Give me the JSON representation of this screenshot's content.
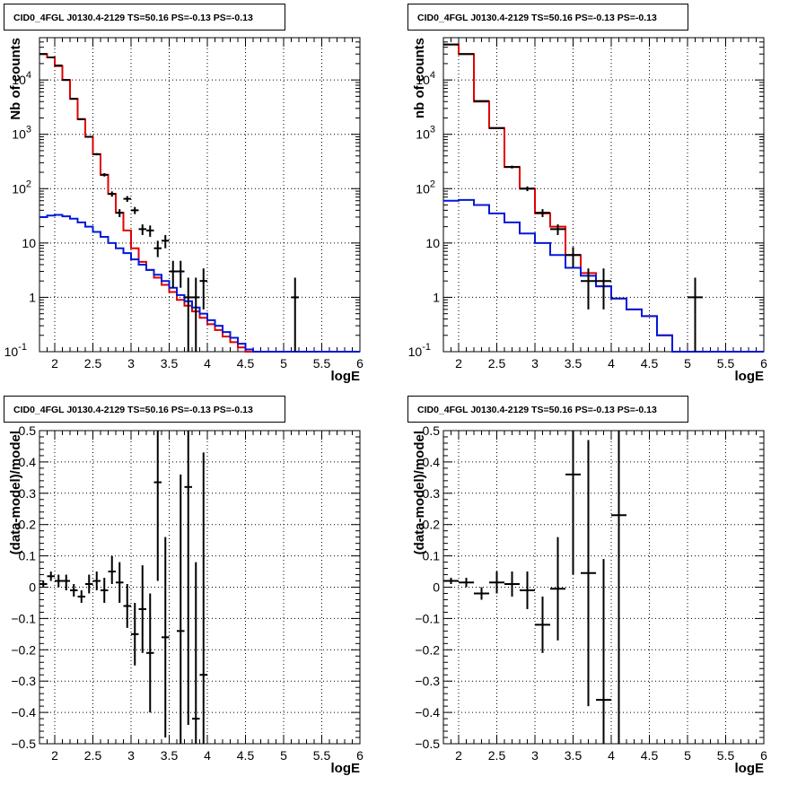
{
  "colors": {
    "data": "#000000",
    "total_model": "#e00000",
    "component_model": "#0018d8",
    "grid": "#000000"
  },
  "chart_data": [
    {
      "type": "line",
      "title": "CID0_4FGL J0130.4-2129 TS=50.16 PS=-0.13 PS=-0.13",
      "xlabel": "logE",
      "ylabel": "Nb of counts",
      "xlim": [
        1.8,
        6.0
      ],
      "ylim": [
        0.1,
        60000
      ],
      "yscale": "log",
      "grid": true,
      "x_ticks": [
        "2",
        "2.5",
        "3",
        "3.5",
        "4",
        "4.5",
        "5",
        "5.5",
        "6"
      ],
      "y_ticks": [
        "10^-1",
        "1",
        "10",
        "10^2",
        "10^3",
        "10^4"
      ],
      "series": [
        {
          "style": "step",
          "color_key": "total_model",
          "edges": [
            1.8,
            1.9,
            2.0,
            2.1,
            2.2,
            2.3,
            2.4,
            2.5,
            2.6,
            2.7,
            2.8,
            2.9,
            3.0,
            3.1,
            3.2,
            3.3,
            3.4,
            3.5,
            3.6,
            3.7,
            3.8,
            3.9,
            4.0,
            4.1,
            4.2,
            4.3,
            4.4,
            4.5,
            4.6,
            4.7,
            4.8,
            4.9,
            5.0,
            5.1,
            5.2,
            5.3,
            5.4,
            5.5,
            5.6,
            5.7,
            5.8,
            5.9,
            6.0
          ],
          "values": [
            30000,
            26000,
            18000,
            10000,
            4500,
            1900,
            900,
            430,
            180,
            80,
            36,
            17,
            8,
            4.5,
            3.2,
            2.3,
            1.7,
            1.25,
            0.9,
            0.7,
            0.55,
            0.42,
            0.32,
            0.25,
            0.19,
            0.15,
            0.12,
            0.1,
            0.1,
            0.1,
            0.1,
            0.1,
            0.1,
            0.1,
            0.1,
            0.1,
            0.1,
            0.1,
            0.1,
            0.1,
            0.1,
            0.1
          ]
        },
        {
          "style": "step",
          "color_key": "component_model",
          "edges": [
            1.8,
            1.9,
            2.0,
            2.1,
            2.2,
            2.3,
            2.4,
            2.5,
            2.6,
            2.7,
            2.8,
            2.9,
            3.0,
            3.1,
            3.2,
            3.3,
            3.4,
            3.5,
            3.6,
            3.7,
            3.8,
            3.9,
            4.0,
            4.1,
            4.2,
            4.3,
            4.4,
            4.5,
            4.6,
            4.7,
            4.8,
            4.9,
            5.0,
            5.1,
            5.2,
            5.3,
            5.4,
            5.5,
            5.6,
            5.7,
            5.8,
            5.9,
            6.0
          ],
          "values": [
            30,
            32,
            33,
            31,
            28,
            24,
            20,
            16,
            13,
            10,
            8,
            6.5,
            5,
            4,
            3.2,
            2.6,
            2,
            1.5,
            1.1,
            0.85,
            0.65,
            0.5,
            0.38,
            0.3,
            0.23,
            0.18,
            0.14,
            0.11,
            0.1,
            0.1,
            0.1,
            0.1,
            0.1,
            0.1,
            0.1,
            0.1,
            0.1,
            0.1,
            0.1,
            0.1,
            0.1,
            0.1
          ]
        },
        {
          "style": "errorbar",
          "color_key": "data",
          "xerr": 0.05,
          "points": [
            {
              "x": 1.85,
              "y": 30000,
              "lo": 29800,
              "hi": 30200
            },
            {
              "x": 1.95,
              "y": 26000,
              "lo": 25800,
              "hi": 26200
            },
            {
              "x": 2.05,
              "y": 18500,
              "lo": 18300,
              "hi": 18700
            },
            {
              "x": 2.15,
              "y": 10000,
              "lo": 9900,
              "hi": 10100
            },
            {
              "x": 2.25,
              "y": 4500,
              "lo": 4430,
              "hi": 4570
            },
            {
              "x": 2.35,
              "y": 1900,
              "lo": 1860,
              "hi": 1940
            },
            {
              "x": 2.45,
              "y": 900,
              "lo": 870,
              "hi": 930
            },
            {
              "x": 2.55,
              "y": 430,
              "lo": 410,
              "hi": 450
            },
            {
              "x": 2.65,
              "y": 180,
              "lo": 167,
              "hi": 193
            },
            {
              "x": 2.75,
              "y": 80,
              "lo": 71,
              "hi": 89
            },
            {
              "x": 2.85,
              "y": 36,
              "lo": 30,
              "hi": 42
            },
            {
              "x": 2.95,
              "y": 65,
              "lo": 57,
              "hi": 73
            },
            {
              "x": 3.05,
              "y": 40,
              "lo": 34,
              "hi": 46
            },
            {
              "x": 3.15,
              "y": 18,
              "lo": 14,
              "hi": 22
            },
            {
              "x": 3.25,
              "y": 17,
              "lo": 13,
              "hi": 21
            },
            {
              "x": 3.35,
              "y": 8,
              "lo": 5.5,
              "hi": 11
            },
            {
              "x": 3.45,
              "y": 11,
              "lo": 8,
              "hi": 14
            },
            {
              "x": 3.55,
              "y": 3,
              "lo": 1.5,
              "hi": 4.7
            },
            {
              "x": 3.65,
              "y": 3,
              "lo": 1.5,
              "hi": 4.7
            },
            {
              "x": 3.75,
              "y": 1,
              "lo": 0.1,
              "hi": 2.3
            },
            {
              "x": 3.85,
              "y": 1,
              "lo": 0.1,
              "hi": 2.3
            },
            {
              "x": 3.95,
              "y": 2,
              "lo": 0.6,
              "hi": 3.4
            },
            {
              "x": 5.15,
              "y": 1,
              "lo": 0.1,
              "hi": 2.3
            }
          ]
        }
      ]
    },
    {
      "type": "line",
      "title": "CID0_4FGL J0130.4-2129 TS=50.16 PS=-0.13 PS=-0.13",
      "xlabel": "logE",
      "ylabel": "nb of counts",
      "xlim": [
        1.8,
        6.0
      ],
      "ylim": [
        0.1,
        60000
      ],
      "yscale": "log",
      "grid": true,
      "x_ticks": [
        "2",
        "2.5",
        "3",
        "3.5",
        "4",
        "4.5",
        "5",
        "5.5",
        "6"
      ],
      "y_ticks": [
        "10^-1",
        "1",
        "10",
        "10^2",
        "10^3",
        "10^4"
      ],
      "series": [
        {
          "style": "step",
          "color_key": "total_model",
          "edges": [
            1.8,
            2.0,
            2.2,
            2.4,
            2.6,
            2.8,
            3.0,
            3.2,
            3.4,
            3.6,
            3.8,
            4.0,
            4.2,
            4.4,
            4.6,
            4.8,
            5.0,
            5.2,
            5.4,
            5.6,
            5.8,
            6.0
          ],
          "values": [
            45000,
            30000,
            4000,
            1300,
            250,
            100,
            35,
            20,
            6,
            2.8,
            1.6,
            0.95,
            0.6,
            0.45,
            0.2,
            0.1,
            0.1,
            0.1,
            0.1,
            0.1,
            0.1
          ]
        },
        {
          "style": "step",
          "color_key": "component_model",
          "edges": [
            1.8,
            2.0,
            2.2,
            2.4,
            2.6,
            2.8,
            3.0,
            3.2,
            3.4,
            3.6,
            3.8,
            4.0,
            4.2,
            4.4,
            4.6,
            4.8,
            5.0,
            5.2,
            5.4,
            5.6,
            5.8,
            6.0
          ],
          "values": [
            60,
            62,
            50,
            35,
            24,
            15,
            10,
            6,
            3.5,
            2.5,
            1.6,
            0.95,
            0.6,
            0.45,
            0.2,
            0.1,
            0.1,
            0.1,
            0.1,
            0.1,
            0.1
          ]
        },
        {
          "style": "errorbar",
          "color_key": "data",
          "xerr": 0.1,
          "points": [
            {
              "x": 1.9,
              "y": 45000,
              "lo": 44800,
              "hi": 45200
            },
            {
              "x": 2.1,
              "y": 30000,
              "lo": 29800,
              "hi": 30200
            },
            {
              "x": 2.3,
              "y": 4100,
              "lo": 4030,
              "hi": 4170
            },
            {
              "x": 2.5,
              "y": 1300,
              "lo": 1260,
              "hi": 1340
            },
            {
              "x": 2.7,
              "y": 250,
              "lo": 235,
              "hi": 265
            },
            {
              "x": 2.9,
              "y": 100,
              "lo": 90,
              "hi": 110
            },
            {
              "x": 3.1,
              "y": 36,
              "lo": 30,
              "hi": 42
            },
            {
              "x": 3.3,
              "y": 18,
              "lo": 14,
              "hi": 22
            },
            {
              "x": 3.5,
              "y": 6,
              "lo": 3.6,
              "hi": 8.4
            },
            {
              "x": 3.7,
              "y": 2,
              "lo": 0.6,
              "hi": 3.4
            },
            {
              "x": 3.9,
              "y": 2,
              "lo": 0.6,
              "hi": 3.4
            },
            {
              "x": 5.1,
              "y": 1,
              "lo": 0.1,
              "hi": 2.3
            }
          ]
        }
      ]
    },
    {
      "type": "scatter",
      "title": "CID0_4FGL J0130.4-2129 TS=50.16 PS=-0.13 PS=-0.13",
      "xlabel": "logE",
      "ylabel": "(data-model)/model",
      "xlim": [
        1.8,
        6.0
      ],
      "ylim": [
        -0.5,
        0.5
      ],
      "yscale": "linear",
      "grid": true,
      "x_ticks": [
        "2",
        "2.5",
        "3",
        "3.5",
        "4",
        "4.5",
        "5",
        "5.5",
        "6"
      ],
      "y_ticks": [
        "−0.5",
        "−0.4",
        "−0.3",
        "−0.2",
        "−0.1",
        "0",
        "0.1",
        "0.2",
        "0.3",
        "0.4",
        "0.5"
      ],
      "series": [
        {
          "style": "errorbar",
          "color_key": "data",
          "xerr": 0.05,
          "points": [
            {
              "x": 1.85,
              "y": 0.01,
              "lo": 0.0,
              "hi": 0.02
            },
            {
              "x": 1.95,
              "y": 0.035,
              "lo": 0.02,
              "hi": 0.05
            },
            {
              "x": 2.05,
              "y": 0.02,
              "lo": 0.0,
              "hi": 0.04
            },
            {
              "x": 2.15,
              "y": 0.02,
              "lo": -0.01,
              "hi": 0.04
            },
            {
              "x": 2.25,
              "y": -0.01,
              "lo": -0.03,
              "hi": 0.01
            },
            {
              "x": 2.35,
              "y": -0.03,
              "lo": -0.05,
              "hi": -0.01
            },
            {
              "x": 2.45,
              "y": 0.01,
              "lo": -0.02,
              "hi": 0.04
            },
            {
              "x": 2.55,
              "y": 0.02,
              "lo": -0.01,
              "hi": 0.05
            },
            {
              "x": 2.65,
              "y": -0.01,
              "lo": -0.05,
              "hi": 0.03
            },
            {
              "x": 2.75,
              "y": 0.05,
              "lo": 0.01,
              "hi": 0.1
            },
            {
              "x": 2.85,
              "y": 0.015,
              "lo": -0.05,
              "hi": 0.08
            },
            {
              "x": 2.95,
              "y": -0.06,
              "lo": -0.13,
              "hi": 0.01
            },
            {
              "x": 3.05,
              "y": -0.15,
              "lo": -0.25,
              "hi": -0.05
            },
            {
              "x": 3.15,
              "y": -0.07,
              "lo": -0.21,
              "hi": 0.07
            },
            {
              "x": 3.25,
              "y": -0.21,
              "lo": -0.4,
              "hi": -0.02
            },
            {
              "x": 3.35,
              "y": 0.335,
              "lo": 0.02,
              "hi": 0.5
            },
            {
              "x": 3.45,
              "y": -0.16,
              "lo": -0.48,
              "hi": 0.16
            },
            {
              "x": 3.65,
              "y": -0.14,
              "lo": -0.5,
              "hi": 0.36
            },
            {
              "x": 3.75,
              "y": 0.32,
              "lo": -0.44,
              "hi": 0.5
            },
            {
              "x": 3.85,
              "y": -0.42,
              "lo": -0.5,
              "hi": 0.08
            },
            {
              "x": 3.95,
              "y": -0.28,
              "lo": -0.5,
              "hi": 0.43
            }
          ]
        }
      ]
    },
    {
      "type": "scatter",
      "title": "CID0_4FGL J0130.4-2129 TS=50.16 PS=-0.13 PS=-0.13",
      "xlabel": "logE",
      "ylabel": "(data-model)/model",
      "xlim": [
        1.8,
        6.0
      ],
      "ylim": [
        -0.5,
        0.5
      ],
      "yscale": "linear",
      "grid": true,
      "x_ticks": [
        "2",
        "2.5",
        "3",
        "3.5",
        "4",
        "4.5",
        "5",
        "5.5",
        "6"
      ],
      "y_ticks": [
        "−0.5",
        "−0.4",
        "−0.3",
        "−0.2",
        "−0.1",
        "0",
        "0.1",
        "0.2",
        "0.3",
        "0.4",
        "0.5"
      ],
      "series": [
        {
          "style": "errorbar",
          "color_key": "data",
          "xerr": 0.1,
          "points": [
            {
              "x": 1.9,
              "y": 0.02,
              "lo": 0.01,
              "hi": 0.03
            },
            {
              "x": 2.1,
              "y": 0.015,
              "lo": 0.0,
              "hi": 0.03
            },
            {
              "x": 2.3,
              "y": -0.02,
              "lo": -0.04,
              "hi": 0.0
            },
            {
              "x": 2.5,
              "y": 0.015,
              "lo": -0.02,
              "hi": 0.05
            },
            {
              "x": 2.7,
              "y": 0.01,
              "lo": -0.03,
              "hi": 0.05
            },
            {
              "x": 2.9,
              "y": -0.01,
              "lo": -0.07,
              "hi": 0.05
            },
            {
              "x": 3.1,
              "y": -0.12,
              "lo": -0.21,
              "hi": -0.03
            },
            {
              "x": 3.3,
              "y": -0.005,
              "lo": -0.17,
              "hi": 0.16
            },
            {
              "x": 3.5,
              "y": 0.36,
              "lo": 0.04,
              "hi": 0.5
            },
            {
              "x": 3.7,
              "y": 0.045,
              "lo": -0.38,
              "hi": 0.47
            },
            {
              "x": 3.9,
              "y": -0.36,
              "lo": -0.5,
              "hi": 0.09
            },
            {
              "x": 4.1,
              "y": 0.23,
              "lo": -0.5,
              "hi": 0.5
            }
          ]
        }
      ]
    }
  ]
}
